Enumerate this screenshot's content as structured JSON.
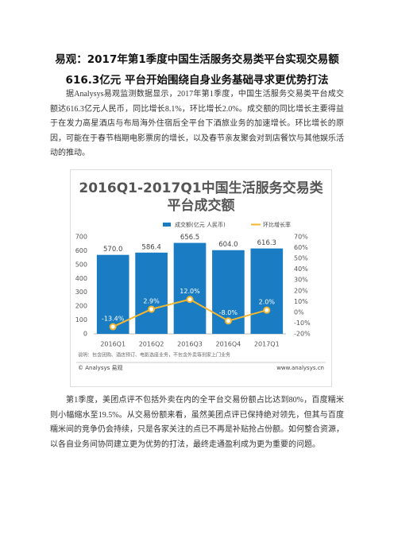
{
  "document": {
    "title": "易观：2017年第1季度中国生活服务交易类平台实现交易额616.3亿元 平台开始围绕自身业务基础寻求更优势打法",
    "paragraphs": [
      "据Analysys易观监测数据显示，2017年第1季度，中国生活服务交易类平台成交额达616.3亿元人民币，同比增长8.1%，环比增长2.0%。成交额的同比增长主要得益于在发力高星酒店与布局海外住宿后全平台下酒旅业务的加速增长。环比增长的原因，可能在于春节档期电影票房的增长，以及春节亲友聚会对到店餐饮与其他娱乐活动的推动。",
      "第1季度，美团点评不包括外卖在内的全平台交易份额占比达到80%，百度糯米则小幅缩水至19.5%。从交易份额来看，虽然美团点评已保持绝对领先，但其与百度糯米间的竞争仍会持续，只是各家关注的点已不再是补贴抢占份额。如何整合资源，以各自业务间协同建立更为优势的打法，最终走通盈利成为更为重要的问题。"
    ]
  },
  "chart_data": {
    "type": "bar",
    "title": [
      "2016Q1-2017Q1中国生活服务交易类",
      "平台成交额"
    ],
    "categories": [
      "2016Q1",
      "2016Q2",
      "2016Q3",
      "2016Q4",
      "2017Q1"
    ],
    "series": [
      {
        "name": "成交额(亿元 人民币)",
        "type": "bar",
        "color": "#1a7dc4",
        "values": [
          570.0,
          586.4,
          656.5,
          604.0,
          616.3
        ],
        "value_labels": [
          "570.0",
          "586.4",
          "656.5",
          "604.0",
          "616.3"
        ]
      },
      {
        "name": "环比增长率",
        "type": "line",
        "axis": "y2",
        "color": "#f5b731",
        "values": [
          -13.4,
          2.9,
          12.0,
          -8.0,
          2.0
        ],
        "value_labels": [
          "-13.4%",
          "2.9%",
          "12.0%",
          "-8.0%",
          "2.0%"
        ]
      }
    ],
    "ylim": [
      0,
      700
    ],
    "yticks": [
      0,
      100,
      200,
      300,
      400,
      500,
      600,
      700
    ],
    "y2lim": [
      -20,
      70
    ],
    "y2ticks": [
      {
        "value": -20,
        "label": "-20%"
      },
      {
        "value": -10,
        "label": "-10%"
      },
      {
        "value": 0,
        "label": "0%"
      },
      {
        "value": 10,
        "label": "10%"
      },
      {
        "value": 20,
        "label": "20%"
      },
      {
        "value": 30,
        "label": "30%"
      },
      {
        "value": 40,
        "label": "40%"
      },
      {
        "value": 50,
        "label": "50%"
      },
      {
        "value": 60,
        "label": "60%"
      },
      {
        "value": 70,
        "label": "70%"
      }
    ],
    "grid": false,
    "note": "说明：包含团购、酒店预订、电影选座业务，不包含外卖等到家上门业务",
    "source": "© Analysys 易观",
    "website": "www.analysys.cn"
  }
}
